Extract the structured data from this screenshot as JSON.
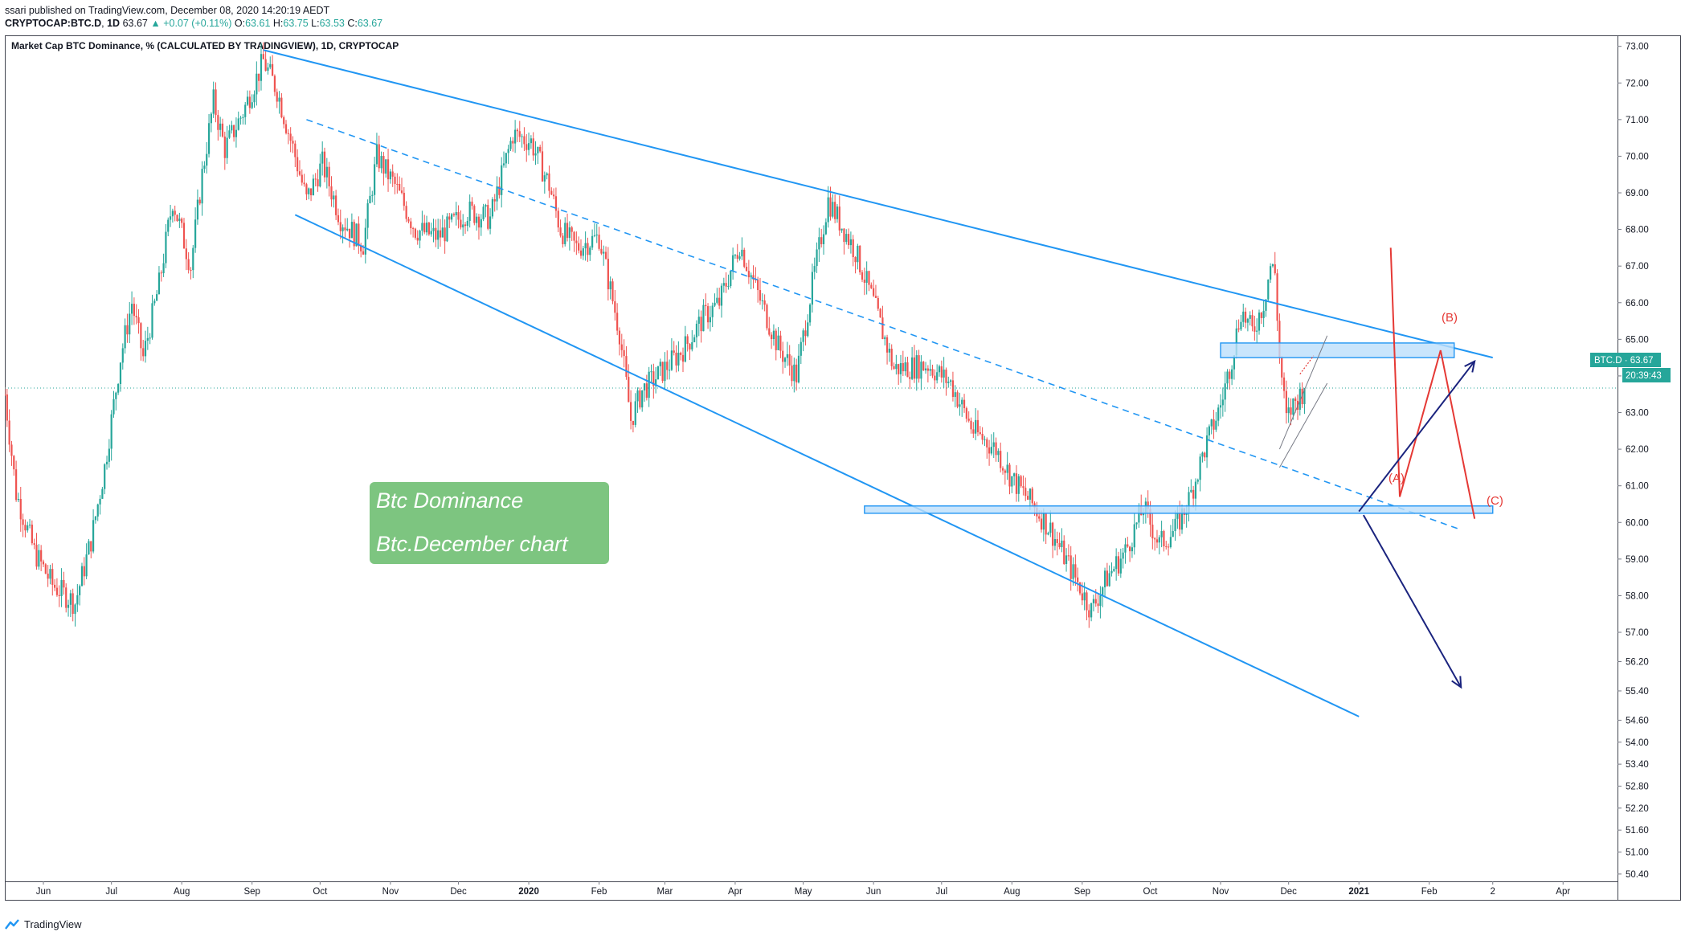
{
  "header": {
    "published_line": "ssari published on TradingView.com, December 08, 2020 14:20:19 AEDT",
    "symbol": "CRYPTOCAP:BTC.D",
    "interval": "1D",
    "last": "63.67",
    "change": "▲ +0.07 (+0.11%)",
    "ohlc": {
      "O": "63.61",
      "H": "63.75",
      "L": "63.53",
      "C": "63.67"
    }
  },
  "legend": {
    "title": "Market Cap BTC Dominance, % (CALCULATED BY TRADINGVIEW), 1D, CRYPTOCAP"
  },
  "price_axis": {
    "ticks": [
      "73.00",
      "72.00",
      "71.00",
      "70.00",
      "69.00",
      "68.00",
      "67.00",
      "66.00",
      "65.00",
      "64.00",
      "63.00",
      "62.00",
      "61.00",
      "60.00",
      "59.00",
      "58.00",
      "57.00",
      "56.20",
      "55.40",
      "54.60",
      "54.00",
      "53.40",
      "52.80",
      "52.20",
      "51.60",
      "51.00",
      "50.40"
    ],
    "price_label": "BTC.D · 63.67",
    "countdown_label": "20:39:43"
  },
  "time_axis": {
    "ticks": [
      "Jun",
      "Jul",
      "Aug",
      "Sep",
      "Oct",
      "Nov",
      "Dec",
      "2020",
      "Feb",
      "Mar",
      "Apr",
      "May",
      "Jun",
      "Jul",
      "Aug",
      "Sep",
      "Oct",
      "Nov",
      "Dec",
      "2021",
      "Feb",
      "2",
      "Apr"
    ]
  },
  "annotations": {
    "note_line1": "Btc Dominance",
    "note_line2": "Btc.December chart",
    "wave_a": "(A)",
    "wave_b": "(B)",
    "wave_c": "(C)"
  },
  "footer": {
    "brand": "TradingView"
  },
  "colors": {
    "up": "#26a69a",
    "down": "#ef5350",
    "trendline": "#2196f3",
    "zone_fill": "#bbdefb",
    "projection_red": "#e53935",
    "projection_blue": "#1a237e",
    "note_bg": "#66bb6a",
    "last_price": "#26a69a"
  },
  "chart_data": {
    "type": "candlestick",
    "title": "Market Cap BTC Dominance, % (CALCULATED BY TRADINGVIEW), 1D, CRYPTOCAP",
    "x_range": [
      "2019-05-15",
      "2021-04-25"
    ],
    "ylim": [
      50.2,
      73.3
    ],
    "last_value": 63.67,
    "grid": false,
    "close_path": [
      [
        "2019-05-15",
        63.5
      ],
      [
        "2019-05-20",
        60.8
      ],
      [
        "2019-05-28",
        59.2
      ],
      [
        "2019-06-05",
        58.3
      ],
      [
        "2019-06-15",
        57.8
      ],
      [
        "2019-06-22",
        59.5
      ],
      [
        "2019-06-28",
        61.5
      ],
      [
        "2019-07-05",
        64.5
      ],
      [
        "2019-07-10",
        66.0
      ],
      [
        "2019-07-15",
        64.5
      ],
      [
        "2019-07-22",
        66.5
      ],
      [
        "2019-07-28",
        68.8
      ],
      [
        "2019-08-05",
        67.0
      ],
      [
        "2019-08-10",
        69.5
      ],
      [
        "2019-08-15",
        71.5
      ],
      [
        "2019-08-20",
        70.2
      ],
      [
        "2019-08-28",
        71.2
      ],
      [
        "2019-09-06",
        72.6
      ],
      [
        "2019-09-12",
        71.8
      ],
      [
        "2019-09-20",
        70.0
      ],
      [
        "2019-09-25",
        68.8
      ],
      [
        "2019-10-02",
        69.8
      ],
      [
        "2019-10-10",
        68.3
      ],
      [
        "2019-10-20",
        67.6
      ],
      [
        "2019-10-26",
        70.0
      ],
      [
        "2019-11-03",
        69.2
      ],
      [
        "2019-11-12",
        68.0
      ],
      [
        "2019-11-22",
        67.8
      ],
      [
        "2019-12-05",
        68.5
      ],
      [
        "2019-12-15",
        68.3
      ],
      [
        "2019-12-25",
        70.6
      ],
      [
        "2020-01-02",
        70.4
      ],
      [
        "2020-01-10",
        69.2
      ],
      [
        "2020-01-15",
        68.0
      ],
      [
        "2020-01-22",
        67.5
      ],
      [
        "2020-02-01",
        67.8
      ],
      [
        "2020-02-10",
        65.2
      ],
      [
        "2020-02-15",
        62.8
      ],
      [
        "2020-02-20",
        63.6
      ],
      [
        "2020-03-01",
        64.2
      ],
      [
        "2020-03-10",
        64.8
      ],
      [
        "2020-03-18",
        65.6
      ],
      [
        "2020-03-25",
        66.0
      ],
      [
        "2020-04-03",
        67.6
      ],
      [
        "2020-04-10",
        66.4
      ],
      [
        "2020-04-20",
        64.8
      ],
      [
        "2020-04-28",
        64.0
      ],
      [
        "2020-05-05",
        66.5
      ],
      [
        "2020-05-12",
        68.8
      ],
      [
        "2020-05-18",
        68.1
      ],
      [
        "2020-05-24",
        67.4
      ],
      [
        "2020-06-01",
        66.0
      ],
      [
        "2020-06-10",
        64.2
      ],
      [
        "2020-06-25",
        64.3
      ],
      [
        "2020-07-05",
        63.8
      ],
      [
        "2020-07-15",
        62.5
      ],
      [
        "2020-07-25",
        62.0
      ],
      [
        "2020-08-01",
        61.2
      ],
      [
        "2020-08-10",
        60.5
      ],
      [
        "2020-08-18",
        59.8
      ],
      [
        "2020-08-28",
        58.6
      ],
      [
        "2020-09-05",
        57.6
      ],
      [
        "2020-09-12",
        58.5
      ],
      [
        "2020-09-20",
        59.2
      ],
      [
        "2020-09-28",
        60.4
      ],
      [
        "2020-10-05",
        59.4
      ],
      [
        "2020-10-12",
        59.8
      ],
      [
        "2020-10-18",
        60.6
      ],
      [
        "2020-10-25",
        62.0
      ],
      [
        "2020-11-01",
        63.2
      ],
      [
        "2020-11-06",
        64.5
      ],
      [
        "2020-11-10",
        65.8
      ],
      [
        "2020-11-15",
        65.2
      ],
      [
        "2020-11-20",
        66.0
      ],
      [
        "2020-11-23",
        67.0
      ],
      [
        "2020-11-25",
        66.8
      ],
      [
        "2020-11-27",
        64.5
      ],
      [
        "2020-11-30",
        62.8
      ],
      [
        "2020-12-03",
        63.2
      ],
      [
        "2020-12-08",
        63.67
      ]
    ]
  }
}
